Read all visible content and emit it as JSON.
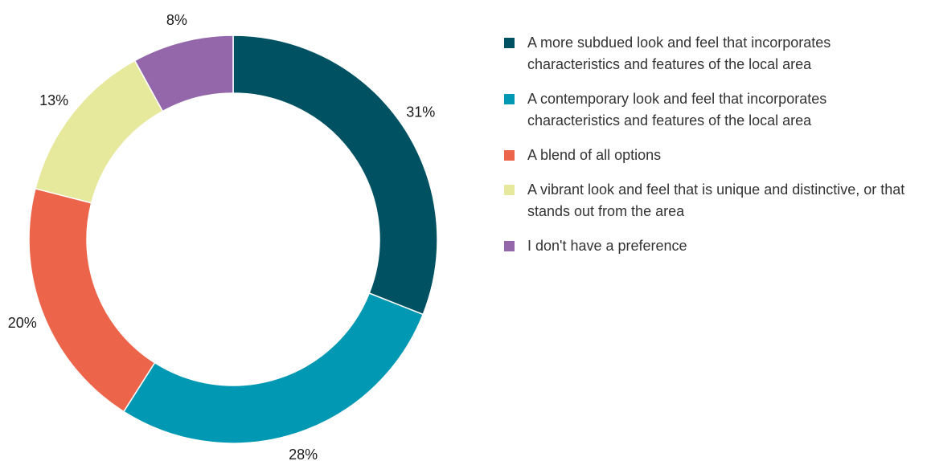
{
  "chart_data": {
    "type": "pie",
    "style": "donut",
    "title": "",
    "slices": [
      {
        "label": "A more subdued look and feel that incorporates characteristics and features of the local area",
        "value": 31,
        "value_label": "31%",
        "color": "#005162"
      },
      {
        "label": "A contemporary look and feel that incorporates characteristics and features of the local area",
        "value": 28,
        "value_label": "28%",
        "color": "#0098b2"
      },
      {
        "label": "A blend of all options",
        "value": 20,
        "value_label": "20%",
        "color": "#ec6449"
      },
      {
        "label": "A vibrant look and feel that is unique and distinctive, or that stands out from the area",
        "value": 13,
        "value_label": "13%",
        "color": "#e6e89c"
      },
      {
        "label": "I don't have a preference",
        "value": 8,
        "value_label": "8%",
        "color": "#9466aa"
      }
    ],
    "legend_position": "right"
  }
}
